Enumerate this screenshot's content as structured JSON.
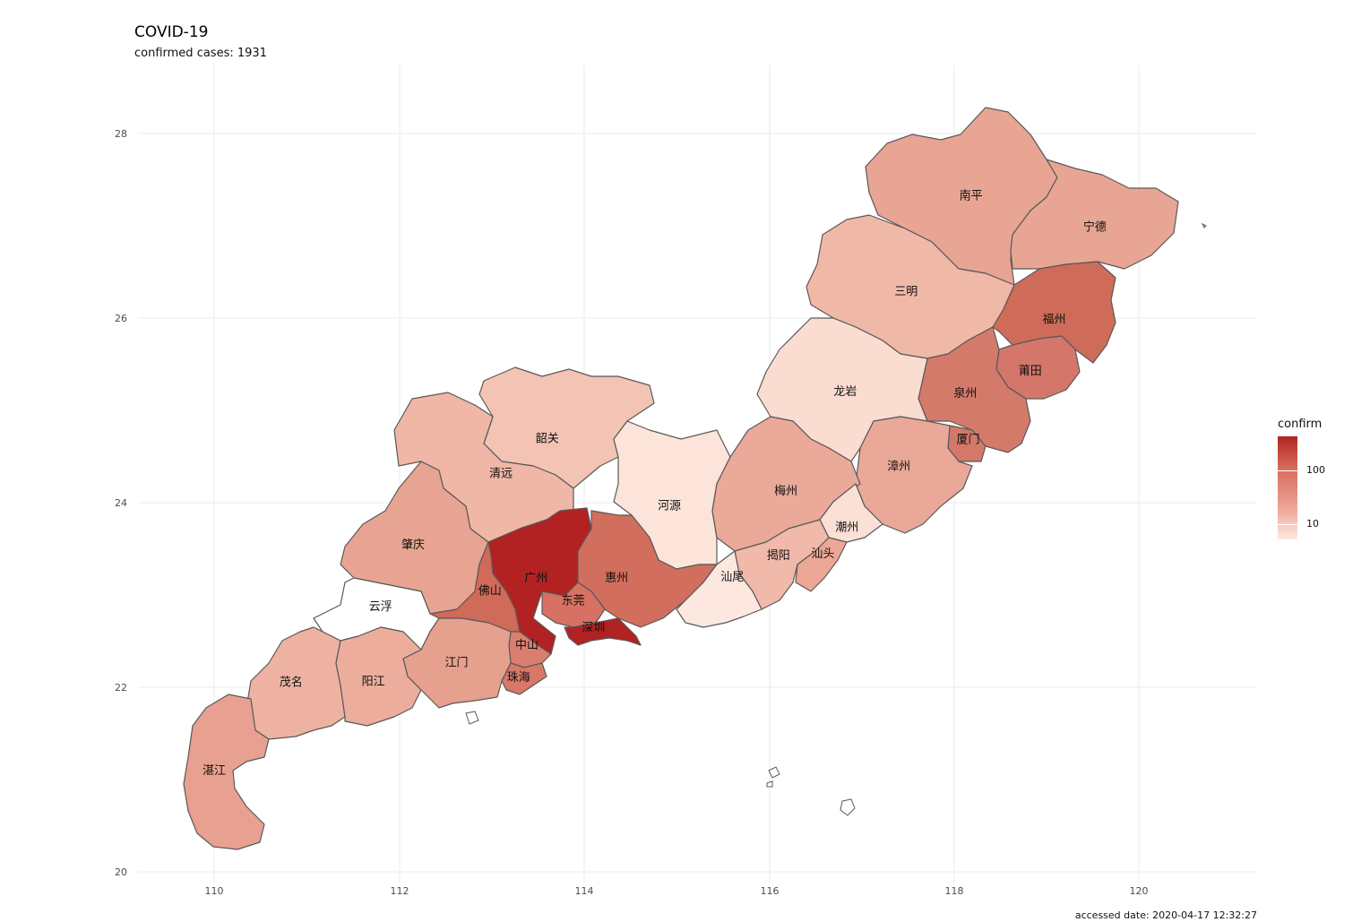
{
  "title": "COVID-19",
  "subtitle": "confirmed cases: 1931",
  "caption": "accessed date: 2020-04-17 12:32:27",
  "legend": {
    "title": "confirm",
    "ticks": [
      "100",
      "10"
    ],
    "low_color": "#fdeae3",
    "high_color": "#b22222"
  },
  "chart_data": {
    "type": "choropleth",
    "x_ticks": [
      "110",
      "112",
      "114",
      "116",
      "118",
      "120"
    ],
    "y_ticks": [
      "28",
      "26",
      "24",
      "22",
      "20"
    ],
    "xlim": [
      109.2,
      121.3
    ],
    "ylim": [
      19.9,
      28.8
    ],
    "scale": "log",
    "regions": [
      {
        "name": "南平",
        "lon": 118.18,
        "lat": 27.32,
        "color": "#e8a593"
      },
      {
        "name": "宁德",
        "lon": 119.52,
        "lat": 26.98,
        "color": "#e8a593"
      },
      {
        "name": "三明",
        "lon": 117.48,
        "lat": 26.28,
        "color": "#f0b8a7"
      },
      {
        "name": "福州",
        "lon": 119.08,
        "lat": 25.98,
        "color": "#cf6b59"
      },
      {
        "name": "莆田",
        "lon": 118.82,
        "lat": 25.42,
        "color": "#d4776a"
      },
      {
        "name": "泉州",
        "lon": 118.12,
        "lat": 25.18,
        "color": "#d47a6b"
      },
      {
        "name": "龙岩",
        "lon": 116.82,
        "lat": 25.2,
        "color": "#fbdcd1"
      },
      {
        "name": "厦门",
        "lon": 118.15,
        "lat": 24.68,
        "color": "#d4786a"
      },
      {
        "name": "漳州",
        "lon": 117.4,
        "lat": 24.39,
        "color": "#e9a898"
      },
      {
        "name": "韶关",
        "lon": 113.6,
        "lat": 24.69,
        "color": "#f3c3b4"
      },
      {
        "name": "清远",
        "lon": 113.1,
        "lat": 24.31,
        "color": "#f0b7a6"
      },
      {
        "name": "河源",
        "lon": 114.92,
        "lat": 23.96,
        "color": "#fce4da"
      },
      {
        "name": "梅州",
        "lon": 116.18,
        "lat": 24.12,
        "color": "#eba999"
      },
      {
        "name": "肇庆",
        "lon": 112.15,
        "lat": 23.54,
        "color": "#e8a493"
      },
      {
        "name": "广州",
        "lon": 113.48,
        "lat": 23.18,
        "color": "#b22222"
      },
      {
        "name": "惠州",
        "lon": 114.35,
        "lat": 23.18,
        "color": "#d26e5d"
      },
      {
        "name": "佛山",
        "lon": 112.98,
        "lat": 23.04,
        "color": "#d06a59"
      },
      {
        "name": "东莞",
        "lon": 113.88,
        "lat": 22.93,
        "color": "#d67163"
      },
      {
        "name": "深圳",
        "lon": 114.1,
        "lat": 22.64,
        "color": "#b22222"
      },
      {
        "name": "云浮",
        "lon": 111.8,
        "lat": 22.87,
        "color": "#ffffff"
      },
      {
        "name": "中山",
        "lon": 113.38,
        "lat": 22.45,
        "color": "#d97f70"
      },
      {
        "name": "江门",
        "lon": 112.62,
        "lat": 22.26,
        "color": "#e6a08e"
      },
      {
        "name": "珠海",
        "lon": 113.29,
        "lat": 22.1,
        "color": "#d77868"
      },
      {
        "name": "茂名",
        "lon": 110.83,
        "lat": 22.05,
        "color": "#eeb2a2"
      },
      {
        "name": "阳江",
        "lon": 111.72,
        "lat": 22.06,
        "color": "#ecad9d"
      },
      {
        "name": "湛江",
        "lon": 110.0,
        "lat": 21.09,
        "color": "#e8a090"
      },
      {
        "name": "潮州",
        "lon": 116.84,
        "lat": 23.73,
        "color": "#fbe0d6"
      },
      {
        "name": "揭阳",
        "lon": 116.1,
        "lat": 23.42,
        "color": "#f0b9a9"
      },
      {
        "name": "汕头",
        "lon": 116.58,
        "lat": 23.44,
        "color": "#eda797"
      },
      {
        "name": "汕尾",
        "lon": 115.6,
        "lat": 23.19,
        "color": "#fde8e0"
      }
    ]
  }
}
